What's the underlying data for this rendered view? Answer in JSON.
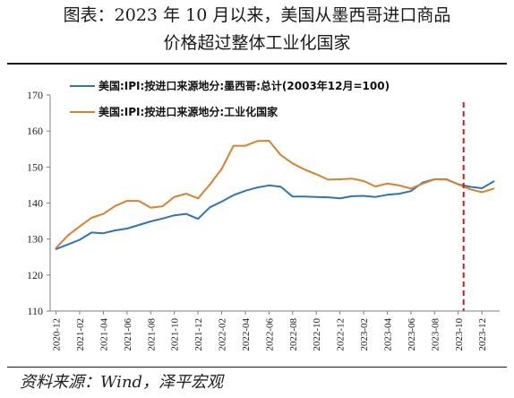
{
  "title_line1": "图表：2023 年 10 月以来，美国从墨西哥进口商品",
  "title_line2": "价格超过整体工业化国家",
  "source": "资料来源：Wind，泽平宏观",
  "chart_data": {
    "type": "line",
    "ylim": [
      110,
      170
    ],
    "yticks": [
      110,
      120,
      130,
      140,
      150,
      160,
      170
    ],
    "xtick_labels": [
      "2020-12",
      "2021-02",
      "2021-04",
      "2021-06",
      "2021-08",
      "2021-10",
      "2021-12",
      "2022-02",
      "2022-04",
      "2022-06",
      "2022-08",
      "2022-10",
      "2022-12",
      "2023-02",
      "2023-04",
      "2023-06",
      "2023-08",
      "2023-10",
      "2023-12"
    ],
    "x": [
      "2020-12",
      "2021-01",
      "2021-02",
      "2021-03",
      "2021-04",
      "2021-05",
      "2021-06",
      "2021-07",
      "2021-08",
      "2021-09",
      "2021-10",
      "2021-11",
      "2021-12",
      "2022-01",
      "2022-02",
      "2022-03",
      "2022-04",
      "2022-05",
      "2022-06",
      "2022-07",
      "2022-08",
      "2022-09",
      "2022-10",
      "2022-11",
      "2022-12",
      "2023-01",
      "2023-02",
      "2023-03",
      "2023-04",
      "2023-05",
      "2023-06",
      "2023-07",
      "2023-08",
      "2023-09",
      "2023-10",
      "2023-11",
      "2023-12",
      "2024-01"
    ],
    "marker_line": {
      "x": "2023-10",
      "color": "#d7191c",
      "style": "dashed"
    },
    "series": [
      {
        "name": "美国:IPI:按进口来源地分:墨西哥:总计(2003年12月=100)",
        "color": "#2e75b6",
        "values": [
          127.2,
          128.5,
          129.8,
          131.8,
          131.6,
          132.4,
          132.9,
          133.9,
          134.9,
          135.7,
          136.6,
          137.0,
          135.6,
          138.8,
          140.4,
          142.2,
          143.4,
          144.3,
          144.9,
          144.5,
          141.8,
          141.8,
          141.7,
          141.6,
          141.3,
          141.9,
          142.0,
          141.7,
          142.3,
          142.6,
          143.3,
          145.7,
          146.6,
          146.6,
          145.2,
          144.5,
          144.1,
          146.0
        ]
      },
      {
        "name": "美国:IPI:按进口来源地分:工业化国家",
        "color": "#d9822b",
        "values": [
          127.5,
          131.0,
          133.5,
          135.9,
          137.0,
          139.2,
          140.6,
          140.6,
          138.7,
          139.1,
          141.7,
          142.6,
          141.3,
          145.1,
          149.5,
          155.9,
          155.9,
          157.2,
          157.3,
          153.3,
          151.0,
          149.3,
          148.0,
          146.5,
          146.6,
          146.8,
          146.1,
          144.6,
          145.4,
          144.9,
          144.0,
          145.4,
          146.6,
          146.5,
          145.2,
          143.8,
          143.0,
          144.0
        ]
      }
    ]
  }
}
